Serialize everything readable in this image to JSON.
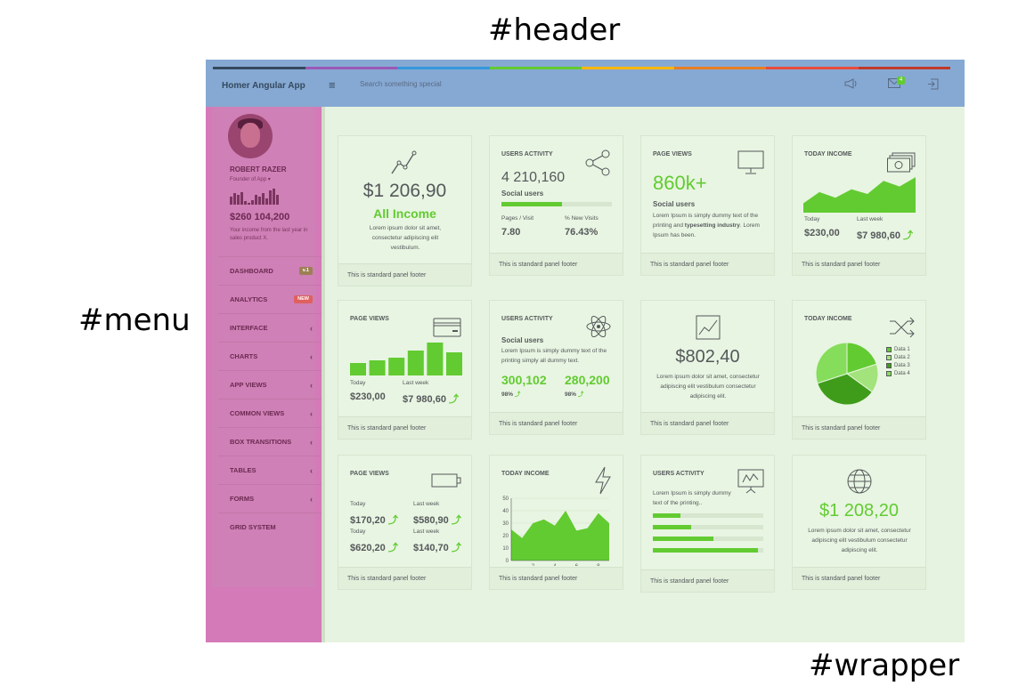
{
  "labels": {
    "header": "#header",
    "menu": "#menu",
    "wrapper": "#wrapper"
  },
  "colors": {
    "accent": "#62cb31",
    "header_overlay": "#86a9d3",
    "menu_overlay": "#d47ab8",
    "wrapper_overlay": "#e6f3e0"
  },
  "colorline": [
    "#34495e",
    "#9b59b6",
    "#3498db",
    "#62cb31",
    "#ffb606",
    "#e67e22",
    "#e74c3c",
    "#c0392b"
  ],
  "header": {
    "brand": "Homer Angular App",
    "search_placeholder": "Search something special",
    "icons": [
      "menu-icon",
      "megaphone-icon",
      "mail-icon",
      "logout-icon"
    ],
    "mail_badge": "4"
  },
  "profile": {
    "name": "ROBERT RAZER",
    "role": "Founder of App",
    "sparkline": [
      5,
      7,
      6,
      8,
      2,
      1,
      3,
      6,
      5,
      7,
      4,
      9,
      10,
      6
    ],
    "amount": "$260 104,200",
    "desc": "Your income from the last year in sales product X."
  },
  "menu": [
    {
      "label": "DASHBOARD",
      "badge": "v.1",
      "badge_color": "#9c7f55"
    },
    {
      "label": "ANALYTICS",
      "badge": "NEW",
      "badge_color": "#e0605f"
    },
    {
      "label": "INTERFACE",
      "arrow": "‹"
    },
    {
      "label": "CHARTS",
      "arrow": "‹"
    },
    {
      "label": "APP VIEWS",
      "arrow": "‹"
    },
    {
      "label": "COMMON VIEWS",
      "arrow": "‹"
    },
    {
      "label": "BOX TRANSITIONS",
      "arrow": "‹"
    },
    {
      "label": "TABLES",
      "arrow": "‹"
    },
    {
      "label": "FORMS",
      "arrow": "‹"
    },
    {
      "label": "GRID SYSTEM"
    }
  ],
  "footer_text": "This is standard panel footer",
  "p1": {
    "icon": "graph-icon",
    "value": "$1 206,90",
    "label": "All Income",
    "desc": "Lorem ipsum dolor sit amet, consectetur adipiscing elit vestibulum."
  },
  "p2": {
    "title": "USERS ACTIVITY",
    "icon": "share-icon",
    "value": "4 210,160",
    "sub": "Social users",
    "progress": 0.55,
    "k1": "Pages / Visit",
    "v1": "7.80",
    "k2": "% New Visits",
    "v2": "76.43%"
  },
  "p3": {
    "title": "PAGE VIEWS",
    "icon": "monitor-icon",
    "value": "860k+",
    "sub": "Social users",
    "desc_a": "Lorem Ipsum is simply dummy text of the printing and ",
    "desc_b": "typesetting industry",
    "desc_c": ". Lorem Ipsum has been."
  },
  "p4": {
    "title": "TODAY INCOME",
    "icon": "money-icon",
    "area": [
      10,
      22,
      16,
      25,
      20,
      34,
      28,
      38
    ],
    "k1": "Today",
    "v1": "$230,00",
    "k2": "Last week",
    "v2": "$7 980,60",
    "trend": "⤴"
  },
  "p5": {
    "title": "PAGE VIEWS",
    "icon": "credit-card-icon",
    "bars": [
      14,
      17,
      20,
      28,
      37,
      26
    ],
    "k1": "Today",
    "v1": "$230,00",
    "k2": "Last week",
    "v2": "$7 980,60",
    "trend": "⤴"
  },
  "p6": {
    "title": "USERS ACTIVITY",
    "icon": "atom-icon",
    "sub": "Social users",
    "desc": "Lorem Ipsum is simply dummy text of the printing simply all dummy text.",
    "n1": "300,102",
    "pct1": "98%",
    "n2": "280,200",
    "pct2": "98%",
    "trend": "⤴"
  },
  "p7": {
    "icon": "stats-icon",
    "value": "$802,40",
    "desc": "Lorem ipsum dolor sit amet, consectetur adipiscing elit vestibulum consectetur adipiscing elit."
  },
  "p8": {
    "title": "TODAY INCOME",
    "icon": "shuffle-icon",
    "chart_data": {
      "type": "pie",
      "labels": [
        "Data 1",
        "Data 2",
        "Data 3",
        "Data 4"
      ],
      "values": [
        20,
        15,
        35,
        30
      ],
      "colors": [
        "#62cb31",
        "#a3e37c",
        "#3f9c1a",
        "#86dd5c"
      ]
    }
  },
  "p9": {
    "title": "PAGE VIEWS",
    "icon": "battery-icon",
    "r1k1": "Today",
    "r1v1": "$170,20",
    "r1k2": "Last week",
    "r1v2": "$580,90",
    "r2k1": "Today",
    "r2v1": "$620,20",
    "r2k2": "Last week",
    "r2v2": "$140,70",
    "trend": "⤴"
  },
  "p10": {
    "title": "TODAY INCOME",
    "icon": "flash-icon",
    "chart_data": {
      "type": "area",
      "x": [
        0,
        1,
        2,
        3,
        4,
        5,
        6,
        7,
        8,
        9
      ],
      "y": [
        25,
        18,
        30,
        33,
        28,
        40,
        24,
        26,
        38,
        30
      ],
      "ylim": [
        0,
        50
      ],
      "yticks": [
        "0",
        "10",
        "20",
        "30",
        "40",
        "50"
      ],
      "xticks": [
        "2",
        "4",
        "6",
        "8"
      ]
    }
  },
  "p11": {
    "title": "USERS ACTIVITY",
    "icon": "presentation-icon",
    "desc": "Lorem Ipsum is simply dummy text of the printing..",
    "progress": [
      0.25,
      0.35,
      0.55,
      0.95
    ]
  },
  "p12": {
    "icon": "globe-icon",
    "value": "$1 208,20",
    "desc": "Lorem ipsum dolor sit amet, consectetur adipiscing elit vestibulum consectetur adipiscing elit."
  }
}
